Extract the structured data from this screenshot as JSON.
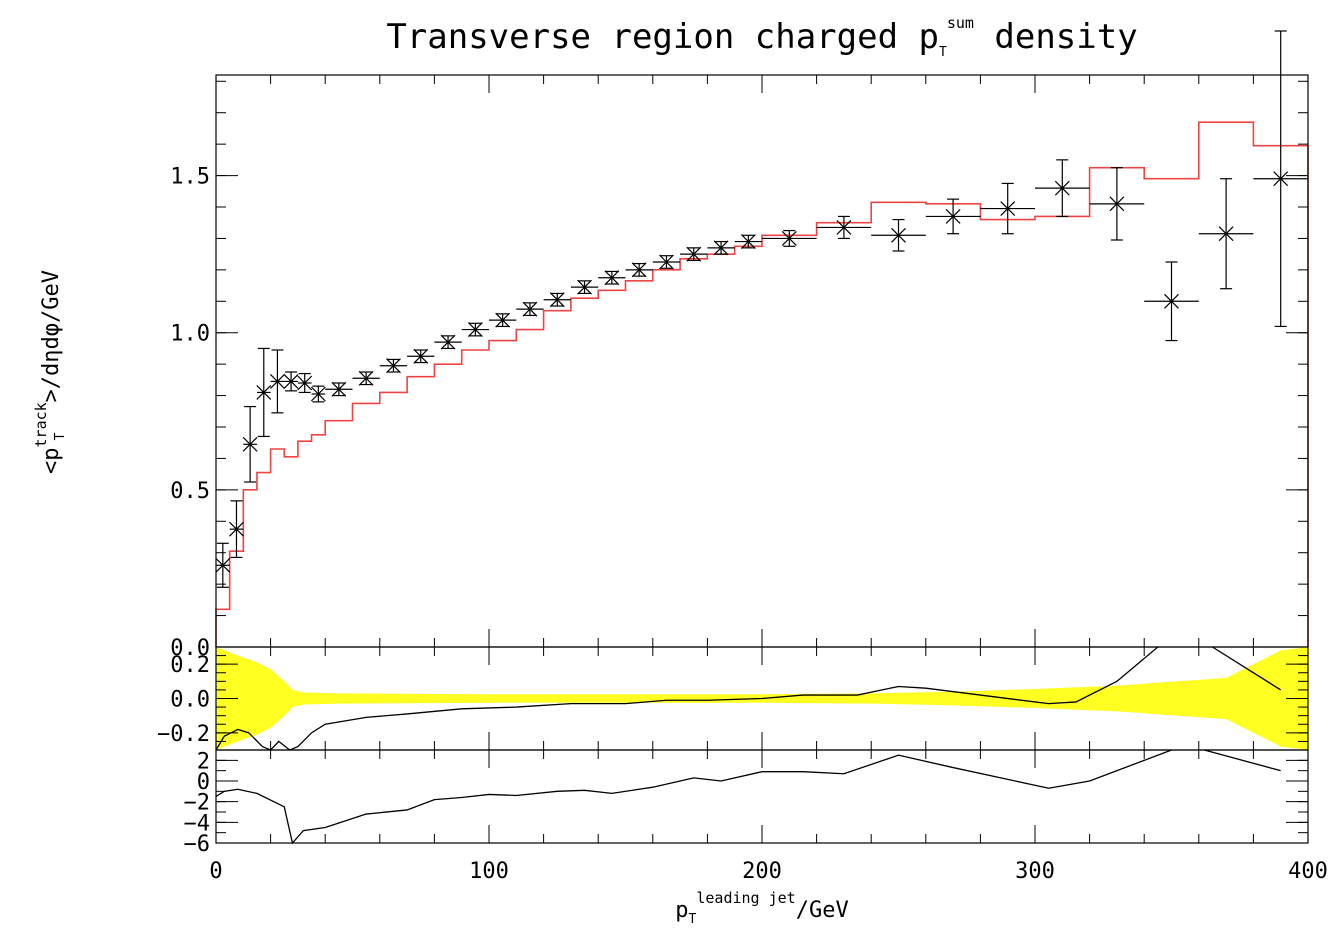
{
  "chart_data": [
    {
      "type": "line",
      "panel": "main",
      "title": "Transverse region charged p",
      "title_sub": "T",
      "title_sup": "sum",
      "title_tail": " density",
      "ylabel": "<p",
      "ylabel_sup": "track",
      "ylabel_sub": "T",
      "ylabel_tail": ">/dηdφ/GeV",
      "xlabel": "p",
      "xlabel_sub": "T",
      "xlabel_sup": "leading jet",
      "xlabel_tail": "/GeV",
      "xlim": [
        0,
        400
      ],
      "ylim": [
        0,
        1.82
      ],
      "yticks": [
        0.0,
        0.5,
        1.0,
        1.5
      ],
      "ytick_labels": [
        "0.0",
        "0.5",
        "1.0",
        "1.5"
      ],
      "xticks": [
        0,
        100,
        200,
        300,
        400
      ],
      "xtick_labels": [
        "0",
        "100",
        "200",
        "300",
        "400"
      ],
      "data_series": {
        "color": "#000000",
        "points": [
          {
            "x": 2.5,
            "xerr": 2.5,
            "y": 0.26,
            "yerr": 0.07
          },
          {
            "x": 7.5,
            "xerr": 2.5,
            "y": 0.375,
            "yerr": 0.09
          },
          {
            "x": 12.5,
            "xerr": 2.5,
            "y": 0.645,
            "yerr": 0.12
          },
          {
            "x": 17.5,
            "xerr": 2.5,
            "y": 0.81,
            "yerr": 0.14
          },
          {
            "x": 22.5,
            "xerr": 2.5,
            "y": 0.845,
            "yerr": 0.1
          },
          {
            "x": 27.5,
            "xerr": 2.5,
            "y": 0.845,
            "yerr": 0.03
          },
          {
            "x": 32.5,
            "xerr": 2.5,
            "y": 0.84,
            "yerr": 0.03
          },
          {
            "x": 37.5,
            "xerr": 2.5,
            "y": 0.805,
            "yerr": 0.025
          },
          {
            "x": 45,
            "xerr": 5,
            "y": 0.82,
            "yerr": 0.02
          },
          {
            "x": 55,
            "xerr": 5,
            "y": 0.855,
            "yerr": 0.02
          },
          {
            "x": 65,
            "xerr": 5,
            "y": 0.895,
            "yerr": 0.02
          },
          {
            "x": 75,
            "xerr": 5,
            "y": 0.925,
            "yerr": 0.02
          },
          {
            "x": 85,
            "xerr": 5,
            "y": 0.97,
            "yerr": 0.02
          },
          {
            "x": 95,
            "xerr": 5,
            "y": 1.01,
            "yerr": 0.02
          },
          {
            "x": 105,
            "xerr": 5,
            "y": 1.04,
            "yerr": 0.02
          },
          {
            "x": 115,
            "xerr": 5,
            "y": 1.075,
            "yerr": 0.02
          },
          {
            "x": 125,
            "xerr": 5,
            "y": 1.105,
            "yerr": 0.02
          },
          {
            "x": 135,
            "xerr": 5,
            "y": 1.145,
            "yerr": 0.02
          },
          {
            "x": 145,
            "xerr": 5,
            "y": 1.175,
            "yerr": 0.02
          },
          {
            "x": 155,
            "xerr": 5,
            "y": 1.2,
            "yerr": 0.02
          },
          {
            "x": 165,
            "xerr": 5,
            "y": 1.225,
            "yerr": 0.02
          },
          {
            "x": 175,
            "xerr": 5,
            "y": 1.25,
            "yerr": 0.02
          },
          {
            "x": 185,
            "xerr": 5,
            "y": 1.27,
            "yerr": 0.02
          },
          {
            "x": 195,
            "xerr": 5,
            "y": 1.29,
            "yerr": 0.02
          },
          {
            "x": 210,
            "xerr": 10,
            "y": 1.3,
            "yerr": 0.025
          },
          {
            "x": 230,
            "xerr": 10,
            "y": 1.335,
            "yerr": 0.035
          },
          {
            "x": 250,
            "xerr": 10,
            "y": 1.31,
            "yerr": 0.05
          },
          {
            "x": 270,
            "xerr": 10,
            "y": 1.37,
            "yerr": 0.055
          },
          {
            "x": 290,
            "xerr": 10,
            "y": 1.395,
            "yerr": 0.08
          },
          {
            "x": 310,
            "xerr": 10,
            "y": 1.46,
            "yerr": 0.09
          },
          {
            "x": 330,
            "xerr": 10,
            "y": 1.41,
            "yerr": 0.115
          },
          {
            "x": 350,
            "xerr": 10,
            "y": 1.1,
            "yerr": 0.125
          },
          {
            "x": 370,
            "xerr": 10,
            "y": 1.315,
            "yerr": 0.175
          },
          {
            "x": 390,
            "xerr": 10,
            "y": 1.49,
            "yerr": 0.47
          }
        ]
      },
      "mc_series": {
        "color": "#ee4444",
        "bins": [
          {
            "lo": 0,
            "hi": 5,
            "y": 0.12
          },
          {
            "lo": 5,
            "hi": 10,
            "y": 0.305
          },
          {
            "lo": 10,
            "hi": 15,
            "y": 0.5
          },
          {
            "lo": 15,
            "hi": 20,
            "y": 0.555
          },
          {
            "lo": 20,
            "hi": 25,
            "y": 0.63
          },
          {
            "lo": 25,
            "hi": 30,
            "y": 0.605
          },
          {
            "lo": 30,
            "hi": 35,
            "y": 0.655
          },
          {
            "lo": 35,
            "hi": 40,
            "y": 0.675
          },
          {
            "lo": 40,
            "hi": 50,
            "y": 0.72
          },
          {
            "lo": 50,
            "hi": 60,
            "y": 0.775
          },
          {
            "lo": 60,
            "hi": 70,
            "y": 0.81
          },
          {
            "lo": 70,
            "hi": 80,
            "y": 0.86
          },
          {
            "lo": 80,
            "hi": 90,
            "y": 0.9
          },
          {
            "lo": 90,
            "hi": 100,
            "y": 0.945
          },
          {
            "lo": 100,
            "hi": 110,
            "y": 0.975
          },
          {
            "lo": 110,
            "hi": 120,
            "y": 1.01
          },
          {
            "lo": 120,
            "hi": 130,
            "y": 1.07
          },
          {
            "lo": 130,
            "hi": 140,
            "y": 1.11
          },
          {
            "lo": 140,
            "hi": 150,
            "y": 1.135
          },
          {
            "lo": 150,
            "hi": 160,
            "y": 1.165
          },
          {
            "lo": 160,
            "hi": 170,
            "y": 1.2
          },
          {
            "lo": 170,
            "hi": 180,
            "y": 1.235
          },
          {
            "lo": 180,
            "hi": 190,
            "y": 1.25
          },
          {
            "lo": 190,
            "hi": 200,
            "y": 1.275
          },
          {
            "lo": 200,
            "hi": 220,
            "y": 1.31
          },
          {
            "lo": 220,
            "hi": 240,
            "y": 1.35
          },
          {
            "lo": 240,
            "hi": 260,
            "y": 1.415
          },
          {
            "lo": 260,
            "hi": 280,
            "y": 1.41
          },
          {
            "lo": 280,
            "hi": 300,
            "y": 1.36
          },
          {
            "lo": 300,
            "hi": 320,
            "y": 1.37
          },
          {
            "lo": 320,
            "hi": 340,
            "y": 1.525
          },
          {
            "lo": 340,
            "hi": 360,
            "y": 1.49
          },
          {
            "lo": 360,
            "hi": 380,
            "y": 1.67
          },
          {
            "lo": 380,
            "hi": 400,
            "y": 1.595
          }
        ]
      }
    },
    {
      "type": "line",
      "panel": "ratio",
      "xlim": [
        0,
        400
      ],
      "ylim": [
        -0.3,
        0.3
      ],
      "yticks": [
        -0.2,
        0.0,
        0.2
      ],
      "ytick_labels": [
        "−0.2",
        "0.0",
        "0.2"
      ],
      "band_color": "#ffff22",
      "line_color": "#000000",
      "band": [
        {
          "x": 0,
          "h": 0.3
        },
        {
          "x": 8,
          "h": 0.25
        },
        {
          "x": 15,
          "h": 0.21
        },
        {
          "x": 20,
          "h": 0.17
        },
        {
          "x": 25,
          "h": 0.1
        },
        {
          "x": 28,
          "h": 0.05
        },
        {
          "x": 32,
          "h": 0.035
        },
        {
          "x": 45,
          "h": 0.03
        },
        {
          "x": 100,
          "h": 0.025
        },
        {
          "x": 200,
          "h": 0.025
        },
        {
          "x": 240,
          "h": 0.03
        },
        {
          "x": 270,
          "h": 0.04
        },
        {
          "x": 300,
          "h": 0.055
        },
        {
          "x": 330,
          "h": 0.075
        },
        {
          "x": 370,
          "h": 0.12
        },
        {
          "x": 380,
          "h": 0.2
        },
        {
          "x": 390,
          "h": 0.28
        },
        {
          "x": 400,
          "h": 0.3
        }
      ],
      "line": [
        {
          "x": 0,
          "y": -0.3
        },
        {
          "x": 3,
          "y": -0.22
        },
        {
          "x": 8,
          "y": -0.18
        },
        {
          "x": 12,
          "y": -0.2
        },
        {
          "x": 17,
          "y": -0.28
        },
        {
          "x": 20,
          "y": -0.3
        },
        {
          "x": 23,
          "y": -0.25
        },
        {
          "x": 27,
          "y": -0.3
        },
        {
          "x": 30,
          "y": -0.28
        },
        {
          "x": 35,
          "y": -0.2
        },
        {
          "x": 40,
          "y": -0.15
        },
        {
          "x": 55,
          "y": -0.11
        },
        {
          "x": 70,
          "y": -0.09
        },
        {
          "x": 90,
          "y": -0.06
        },
        {
          "x": 110,
          "y": -0.05
        },
        {
          "x": 130,
          "y": -0.03
        },
        {
          "x": 150,
          "y": -0.03
        },
        {
          "x": 165,
          "y": -0.01
        },
        {
          "x": 180,
          "y": -0.01
        },
        {
          "x": 200,
          "y": 0.0
        },
        {
          "x": 215,
          "y": 0.02
        },
        {
          "x": 235,
          "y": 0.02
        },
        {
          "x": 250,
          "y": 0.07
        },
        {
          "x": 260,
          "y": 0.06
        },
        {
          "x": 280,
          "y": 0.02
        },
        {
          "x": 305,
          "y": -0.03
        },
        {
          "x": 315,
          "y": -0.02
        },
        {
          "x": 330,
          "y": 0.1
        },
        {
          "x": 345,
          "y": 0.3
        }
      ],
      "line2": [
        {
          "x": 365,
          "y": 0.3
        },
        {
          "x": 390,
          "y": 0.05
        }
      ]
    },
    {
      "type": "line",
      "panel": "deviation",
      "xlim": [
        0,
        400
      ],
      "ylim": [
        -6,
        3
      ],
      "yticks": [
        -6,
        -4,
        -2,
        0,
        2
      ],
      "ytick_labels": [
        "−6",
        "−4",
        "−2",
        "0",
        "2"
      ],
      "line_color": "#000000",
      "line": [
        {
          "x": 0,
          "y": -1.5
        },
        {
          "x": 3,
          "y": -1.0
        },
        {
          "x": 8,
          "y": -0.8
        },
        {
          "x": 15,
          "y": -1.2
        },
        {
          "x": 25,
          "y": -2.5
        },
        {
          "x": 28,
          "y": -6.0
        },
        {
          "x": 32,
          "y": -4.8
        },
        {
          "x": 40,
          "y": -4.5
        },
        {
          "x": 55,
          "y": -3.2
        },
        {
          "x": 70,
          "y": -2.8
        },
        {
          "x": 80,
          "y": -1.8
        },
        {
          "x": 90,
          "y": -1.6
        },
        {
          "x": 100,
          "y": -1.3
        },
        {
          "x": 110,
          "y": -1.4
        },
        {
          "x": 125,
          "y": -1.0
        },
        {
          "x": 135,
          "y": -0.9
        },
        {
          "x": 145,
          "y": -1.2
        },
        {
          "x": 160,
          "y": -0.6
        },
        {
          "x": 175,
          "y": 0.3
        },
        {
          "x": 185,
          "y": 0.0
        },
        {
          "x": 200,
          "y": 0.9
        },
        {
          "x": 215,
          "y": 0.9
        },
        {
          "x": 230,
          "y": 0.7
        },
        {
          "x": 250,
          "y": 2.5
        },
        {
          "x": 270,
          "y": 1.3
        },
        {
          "x": 305,
          "y": -0.7
        },
        {
          "x": 320,
          "y": 0.0
        },
        {
          "x": 350,
          "y": 3.0
        }
      ],
      "line2": [
        {
          "x": 362,
          "y": 3.0
        },
        {
          "x": 390,
          "y": 1.0
        }
      ]
    }
  ]
}
